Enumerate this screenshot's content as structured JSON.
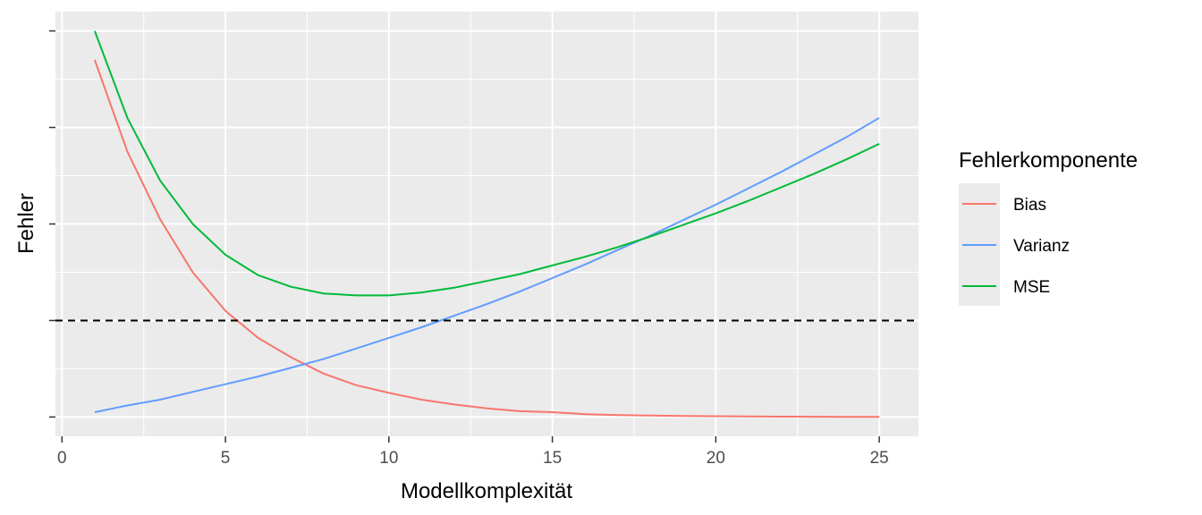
{
  "chart_data": {
    "type": "line",
    "xlabel": "Modellkomplexität",
    "ylabel": "Fehler",
    "xlim": [
      -0.2,
      26.2
    ],
    "ylim": [
      -0.2,
      4.2
    ],
    "x_ticks": [
      0,
      5,
      10,
      15,
      20,
      25
    ],
    "x_tick_labels": [
      "0",
      "5",
      "10",
      "15",
      "20",
      "25"
    ],
    "y_ticks": [
      0,
      1,
      2,
      3,
      4
    ],
    "grid": true,
    "legend": {
      "title": "Fehlerkomponente",
      "position": "right",
      "entries": [
        "Bias",
        "Varianz",
        "MSE"
      ]
    },
    "series": [
      {
        "name": "Bias",
        "color": "#F8766D",
        "x": [
          1,
          2,
          3,
          4,
          5,
          6,
          7,
          8,
          9,
          10,
          11,
          12,
          13,
          14,
          15,
          16,
          17,
          18,
          19,
          20,
          21,
          22,
          23,
          24,
          25
        ],
        "values": [
          3.7,
          2.75,
          2.05,
          1.5,
          1.1,
          0.82,
          0.62,
          0.45,
          0.33,
          0.25,
          0.18,
          0.13,
          0.09,
          0.06,
          0.05,
          0.03,
          0.02,
          0.015,
          0.01,
          0.008,
          0.006,
          0.004,
          0.003,
          0.002,
          0.001
        ]
      },
      {
        "name": "Varianz",
        "color": "#619CFF",
        "x": [
          1,
          2,
          3,
          4,
          5,
          6,
          7,
          8,
          9,
          10,
          11,
          12,
          13,
          14,
          15,
          16,
          17,
          18,
          19,
          20,
          21,
          22,
          23,
          24,
          25
        ],
        "values": [
          0.05,
          0.12,
          0.18,
          0.26,
          0.34,
          0.42,
          0.51,
          0.6,
          0.71,
          0.82,
          0.93,
          1.05,
          1.17,
          1.3,
          1.44,
          1.58,
          1.73,
          1.88,
          2.04,
          2.2,
          2.37,
          2.54,
          2.72,
          2.9,
          3.1
        ]
      },
      {
        "name": "MSE",
        "color": "#00BA38",
        "x": [
          1,
          2,
          3,
          4,
          5,
          6,
          7,
          8,
          9,
          10,
          11,
          12,
          13,
          14,
          15,
          16,
          17,
          18,
          19,
          20,
          21,
          22,
          23,
          24,
          25
        ],
        "values": [
          4.0,
          3.1,
          2.45,
          2.0,
          1.68,
          1.47,
          1.35,
          1.28,
          1.26,
          1.26,
          1.29,
          1.34,
          1.41,
          1.48,
          1.57,
          1.66,
          1.76,
          1.87,
          1.99,
          2.11,
          2.24,
          2.38,
          2.52,
          2.67,
          2.83
        ]
      }
    ],
    "reference_line": {
      "y": 1.0,
      "style": "dashed",
      "color": "#000000"
    }
  }
}
